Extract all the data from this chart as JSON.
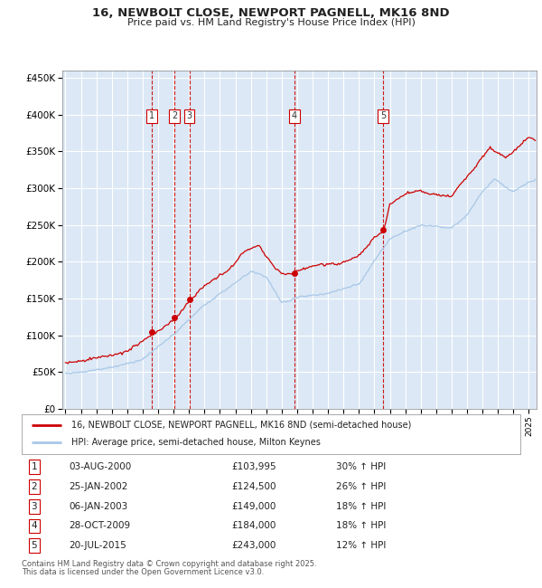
{
  "title": "16, NEWBOLT CLOSE, NEWPORT PAGNELL, MK16 8ND",
  "subtitle": "Price paid vs. HM Land Registry's House Price Index (HPI)",
  "legend_line1": "16, NEWBOLT CLOSE, NEWPORT PAGNELL, MK16 8ND (semi-detached house)",
  "legend_line2": "HPI: Average price, semi-detached house, Milton Keynes",
  "footer1": "Contains HM Land Registry data © Crown copyright and database right 2025.",
  "footer2": "This data is licensed under the Open Government Licence v3.0.",
  "transactions": [
    {
      "num": 1,
      "date": "03-AUG-2000",
      "price": 103995,
      "hpi_pct": "30% ↑ HPI",
      "year": 2000.59
    },
    {
      "num": 2,
      "date": "25-JAN-2002",
      "price": 124500,
      "hpi_pct": "26% ↑ HPI",
      "year": 2002.07
    },
    {
      "num": 3,
      "date": "06-JAN-2003",
      "price": 149000,
      "hpi_pct": "18% ↑ HPI",
      "year": 2003.02
    },
    {
      "num": 4,
      "date": "28-OCT-2009",
      "price": 184000,
      "hpi_pct": "18% ↑ HPI",
      "year": 2009.83
    },
    {
      "num": 5,
      "date": "20-JUL-2015",
      "price": 243000,
      "hpi_pct": "12% ↑ HPI",
      "year": 2015.55
    }
  ],
  "hpi_color": "#a8c8e8",
  "price_color": "#cc0000",
  "marker_color": "#cc0000",
  "vline_color": "#cc0000",
  "bg_color": "#dce8f5",
  "grid_color": "#ffffff",
  "ylim": [
    0,
    460000
  ],
  "xlim_start": 1994.8,
  "xlim_end": 2025.5,
  "yticks": [
    0,
    50000,
    100000,
    150000,
    200000,
    250000,
    300000,
    350000,
    400000,
    450000
  ]
}
